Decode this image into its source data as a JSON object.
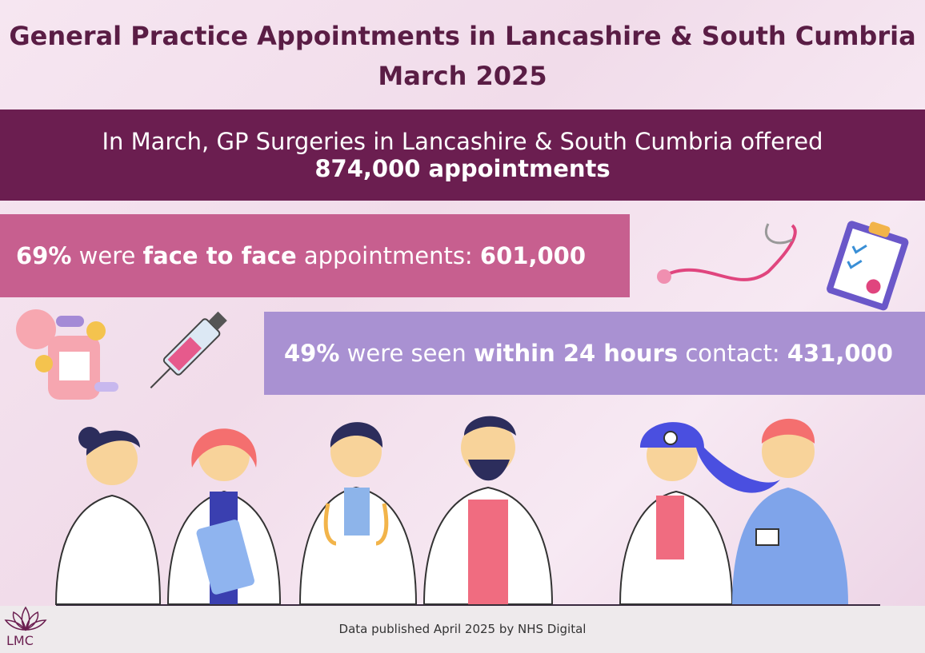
{
  "header": {
    "title": [
      "General Practice Appointments in Lancashire & South Cumbria",
      "March 2025"
    ]
  },
  "banner": {
    "lines": [
      [
        {
          "text": "In March, GP Surgeries in Lancashire & South Cumbria offered",
          "bold": false
        }
      ],
      [
        {
          "text": "874,000 appointments",
          "bold": true
        }
      ]
    ]
  },
  "stats": [
    {
      "parts": [
        {
          "text": "69%",
          "bold": true
        },
        {
          "text": "were",
          "bold": false
        },
        {
          "text": "face to face",
          "bold": true
        },
        {
          "text": "appointments:",
          "bold": false
        },
        {
          "text": "601,000",
          "bold": true
        }
      ]
    },
    {
      "parts": [
        {
          "text": "49%",
          "bold": true
        },
        {
          "text": "were seen",
          "bold": false
        },
        {
          "text": "within 24 hours",
          "bold": true
        },
        {
          "text": "contact:",
          "bold": false
        },
        {
          "text": "431,000",
          "bold": true
        }
      ]
    }
  ],
  "footer": {
    "source": "Data published April 2025 by NHS Digital",
    "logo": "LMC"
  }
}
